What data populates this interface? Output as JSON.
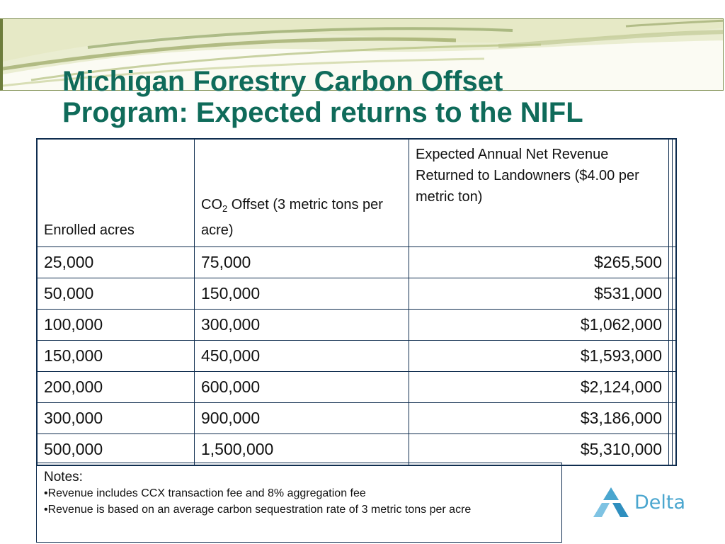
{
  "title": {
    "line1": "Michigan Forestry Carbon Offset",
    "line2": "Program: Expected returns to the NIFL"
  },
  "table": {
    "headers": {
      "acres": "Enrolled acres",
      "co2_prefix": "CO",
      "co2_sub": "2",
      "co2_suffix": " Offset (3 metric tons per acre)",
      "revenue": "Expected Annual Net Revenue Returned to Landowners ($4.00 per metric ton)"
    },
    "rows": [
      {
        "acres": "25,000",
        "offset": "75,000",
        "revenue": "$265,500"
      },
      {
        "acres": "50,000",
        "offset": "150,000",
        "revenue": "$531,000"
      },
      {
        "acres": "100,000",
        "offset": "300,000",
        "revenue": "$1,062,000"
      },
      {
        "acres": "150,000",
        "offset": "450,000",
        "revenue": "$1,593,000"
      },
      {
        "acres": "200,000",
        "offset": "600,000",
        "revenue": "$2,124,000"
      },
      {
        "acres": "300,000",
        "offset": "900,000",
        "revenue": "$3,186,000"
      },
      {
        "acres": "500,000",
        "offset": "1,500,000",
        "revenue": "$5,310,000"
      }
    ]
  },
  "notes": {
    "title": "Notes:",
    "items": [
      "•Revenue includes CCX transaction fee and 8% aggregation fee",
      "•Revenue is based on an average carbon sequestration rate of 3 metric   tons per acre"
    ]
  },
  "logo": {
    "name": "Delta",
    "icon": "delta-triangle-logo-icon"
  },
  "colors": {
    "title": "#0f6b5a",
    "table_border": "#0f2d4f",
    "logo_text": "#4aa6cf",
    "banner_green": "#6d7d3c"
  }
}
